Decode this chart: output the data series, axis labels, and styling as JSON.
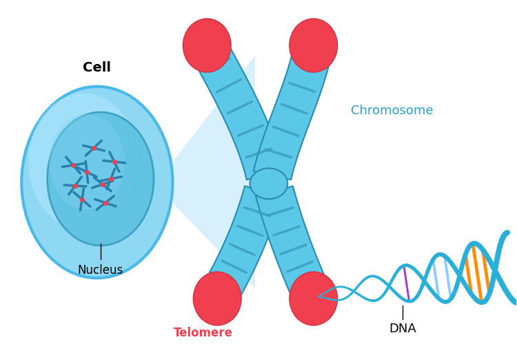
{
  "background_color": "#ffffff",
  "cell_outer_color": "#7ed4f0",
  "cell_outer_edge": "#4ab8e8",
  "cell_inner_color": "#55b8e0",
  "cell_inner_edge": "#2a9fd0",
  "chrom_body": "#5bc8e8",
  "chrom_stripe": "#3a9abf",
  "chrom_edge": "#2a8ab0",
  "telomere_color": "#f04050",
  "telomere_edge": "#d03040",
  "beam_color": "#c0e8f8",
  "dna_backbone": "#2ab0d8",
  "dna_rungs": [
    "#ff3333",
    "#ffcc00",
    "#9933cc",
    "#88ccff",
    "#ff8800",
    "#44aacc"
  ],
  "text_cell": "Cell",
  "text_nucleus": "Nucleus",
  "text_chromosome": "Chromosome",
  "text_telomere": "Telomere",
  "text_dna": "DNA"
}
